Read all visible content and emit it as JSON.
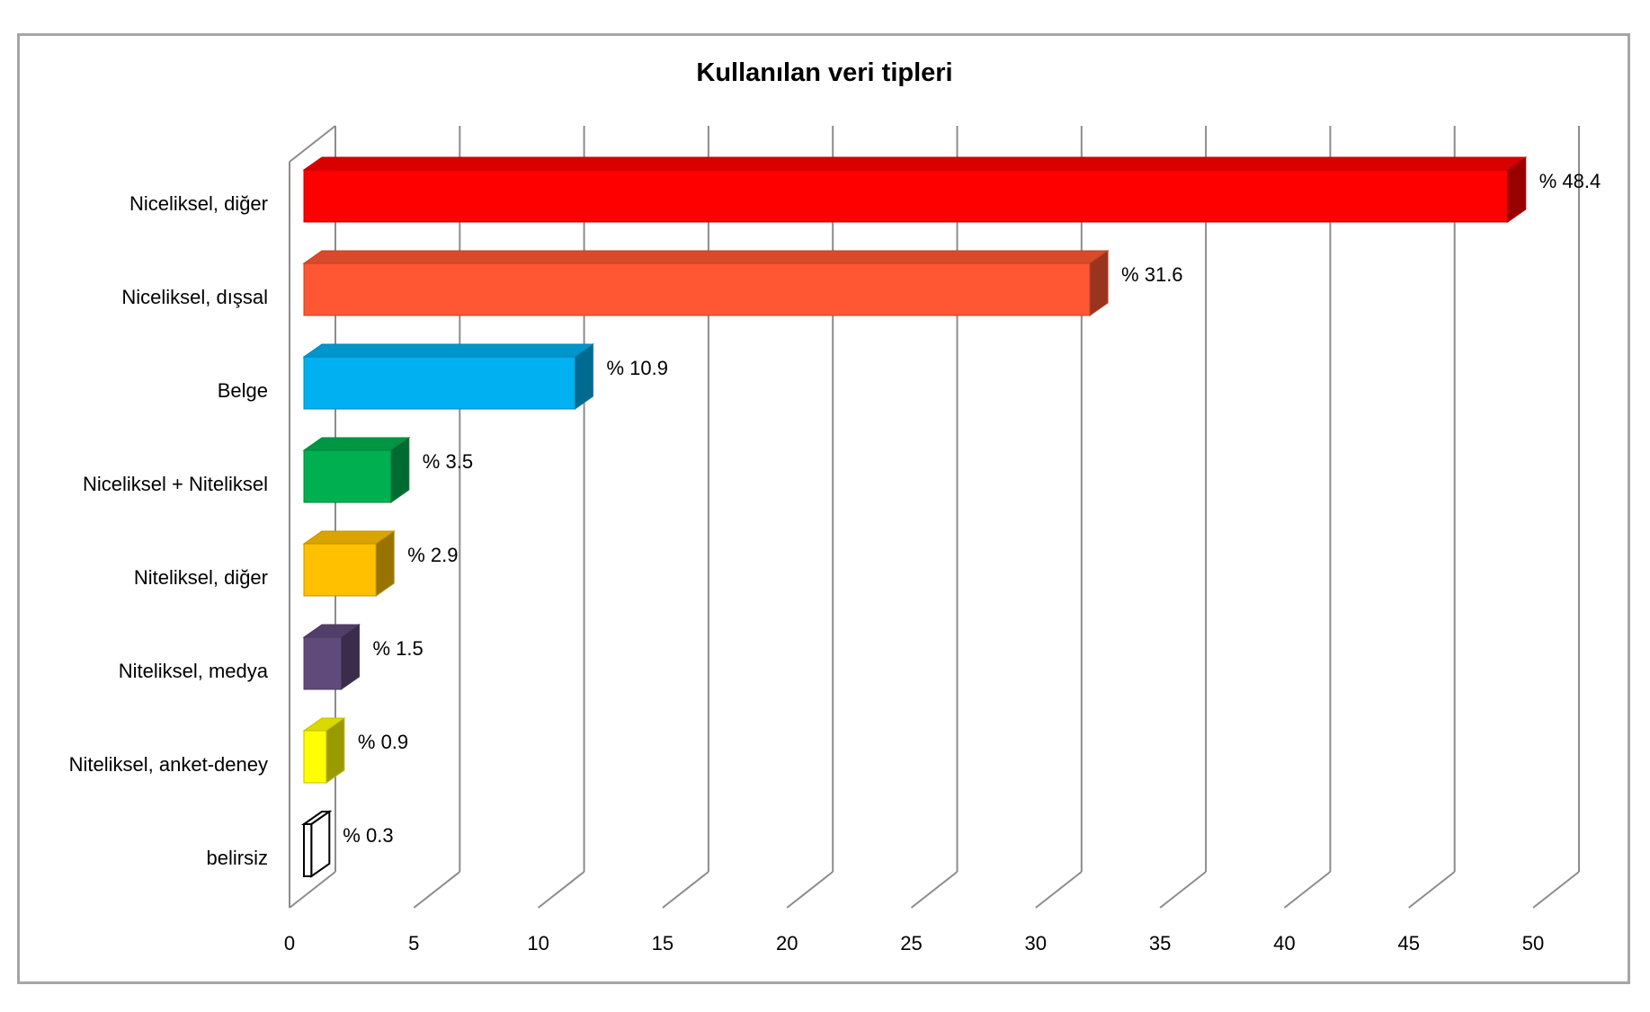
{
  "chart_data": {
    "type": "bar",
    "orientation": "horizontal",
    "style": "3d",
    "title": "Kullanılan veri tipleri",
    "xlabel": "",
    "ylabel": "",
    "xlim": [
      0,
      50
    ],
    "x_ticks": [
      "0",
      "5",
      "10",
      "15",
      "20",
      "25",
      "30",
      "35",
      "40",
      "45",
      "50"
    ],
    "grid": true,
    "legend": "none",
    "categories": [
      "Niceliksel, diğer",
      "Niceliksel, dışsal",
      "Belge",
      "Niceliksel + Niteliksel",
      "Niteliksel, diğer",
      "Niteliksel, medya",
      "Niteliksel, anket-deney",
      "belirsiz"
    ],
    "values": [
      48.4,
      31.6,
      10.9,
      3.5,
      2.9,
      1.5,
      0.9,
      0.3
    ],
    "data_labels": [
      "% 48.4",
      "% 31.6",
      "% 10.9",
      "% 3.5",
      "% 2.9",
      "% 1.5",
      "% 0.9",
      "% 0.3"
    ],
    "colors": [
      "#ff0000",
      "#ff5733",
      "#00b0f0",
      "#00b050",
      "#ffc000",
      "#604a7b",
      "#ffff00",
      "#ffffff"
    ]
  }
}
